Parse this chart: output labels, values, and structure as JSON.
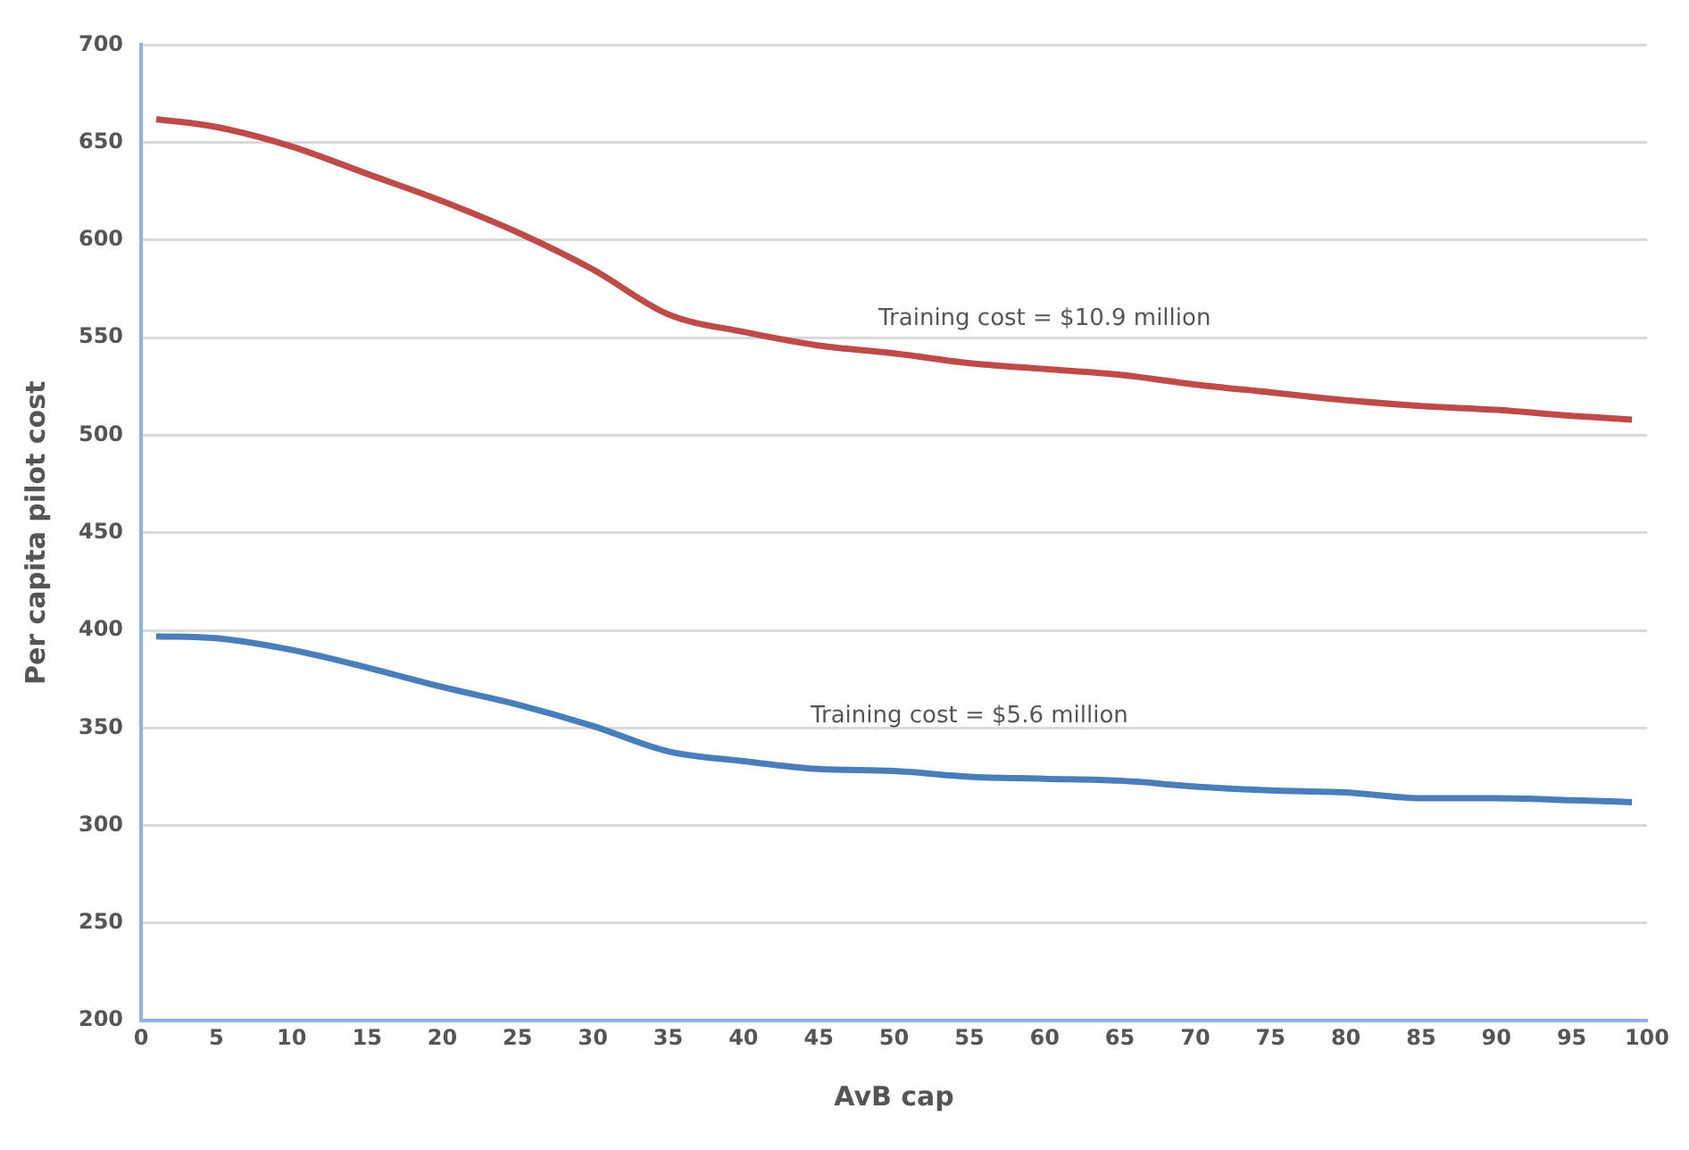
{
  "chart_data": {
    "type": "line",
    "xlabel": "AvB cap",
    "ylabel": "Per capita pilot cost",
    "x": [
      1,
      5,
      10,
      15,
      20,
      25,
      30,
      35,
      40,
      45,
      50,
      55,
      60,
      65,
      70,
      75,
      80,
      85,
      90,
      95,
      99
    ],
    "series": [
      {
        "color": "#be4b48",
        "values": [
          662,
          658,
          648,
          634,
          620,
          604,
          585,
          562,
          553,
          546,
          542,
          537,
          534,
          531,
          526,
          522,
          518,
          515,
          513,
          510,
          508
        ]
      },
      {
        "color": "#4a7ebb",
        "values": [
          397,
          396,
          390,
          381,
          371,
          362,
          351,
          338,
          333,
          329,
          328,
          325,
          324,
          323,
          320,
          318,
          317,
          314,
          314,
          313,
          312
        ]
      }
    ],
    "xlim": [
      0,
      100
    ],
    "xticks": [
      0,
      5,
      10,
      15,
      20,
      25,
      30,
      35,
      40,
      45,
      50,
      55,
      60,
      65,
      70,
      75,
      80,
      85,
      90,
      95,
      100
    ],
    "ylim": [
      200,
      700
    ],
    "yticks": [
      200,
      250,
      300,
      350,
      400,
      450,
      500,
      550,
      600,
      650,
      700
    ],
    "grid": "y",
    "legend": false,
    "marker": "none",
    "line_style": "solid",
    "annotations": [
      "Training cost = $10.9 million",
      "Training cost = $5.6 million"
    ]
  }
}
